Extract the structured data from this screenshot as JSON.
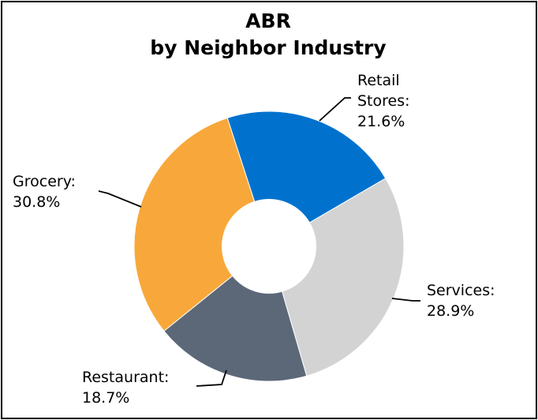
{
  "chart_data": {
    "type": "pie",
    "title": "ABR",
    "subtitle": "by Neighbor Industry",
    "slices": [
      {
        "key": "retail",
        "label_lines": [
          "Retail",
          "Stores:",
          "21.6%"
        ],
        "value": 21.6,
        "color": "#0072CE"
      },
      {
        "key": "services",
        "label_lines": [
          "Services:",
          "28.9%"
        ],
        "value": 28.9,
        "color": "#D3D3D3"
      },
      {
        "key": "restaurant",
        "label_lines": [
          "Restaurant:",
          "18.7%"
        ],
        "value": 18.7,
        "color": "#5C6878"
      },
      {
        "key": "grocery",
        "label_lines": [
          "Grocery:",
          "30.8%"
        ],
        "value": 30.8,
        "color": "#F8A83A"
      }
    ],
    "donut_hole": true
  }
}
